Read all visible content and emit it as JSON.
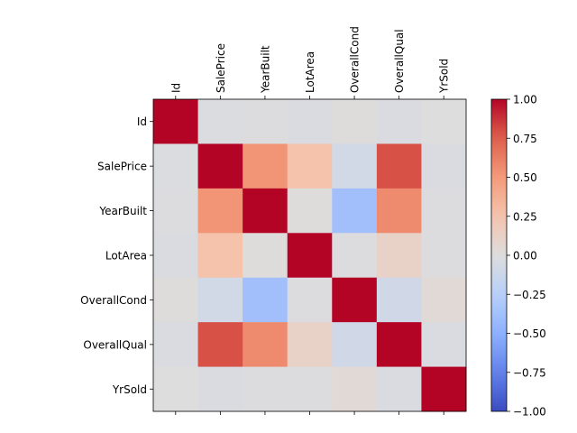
{
  "chart_data": {
    "type": "heatmap",
    "variables": [
      "Id",
      "SalePrice",
      "YearBuilt",
      "LotArea",
      "OverallCond",
      "OverallQual",
      "YrSold"
    ],
    "matrix": [
      [
        1.0,
        -0.02,
        -0.01,
        -0.03,
        0.01,
        -0.03,
        0.0
      ],
      [
        -0.02,
        1.0,
        0.52,
        0.26,
        -0.08,
        0.79,
        -0.03
      ],
      [
        -0.01,
        0.52,
        1.0,
        0.01,
        -0.38,
        0.57,
        -0.01
      ],
      [
        -0.03,
        0.26,
        0.01,
        1.0,
        -0.01,
        0.11,
        -0.01
      ],
      [
        0.01,
        -0.08,
        -0.38,
        -0.01,
        1.0,
        -0.09,
        0.04
      ],
      [
        -0.03,
        0.79,
        0.57,
        0.11,
        -0.09,
        1.0,
        -0.03
      ],
      [
        0.0,
        -0.03,
        -0.01,
        -0.01,
        0.04,
        -0.03,
        1.0
      ]
    ],
    "colormap": "coolwarm",
    "vmin": -1.0,
    "vmax": 1.0,
    "colorbar_ticks": [
      -1.0,
      -0.75,
      -0.5,
      -0.25,
      0.0,
      0.25,
      0.5,
      0.75,
      1.0
    ],
    "colorbar_tick_labels": [
      "−1.00",
      "−0.75",
      "−0.50",
      "−0.25",
      "0.00",
      "0.25",
      "0.50",
      "0.75",
      "1.00"
    ],
    "x_tick_position": "top",
    "x_tick_rotation": 90,
    "grid": false,
    "colorbar_position": "right"
  }
}
